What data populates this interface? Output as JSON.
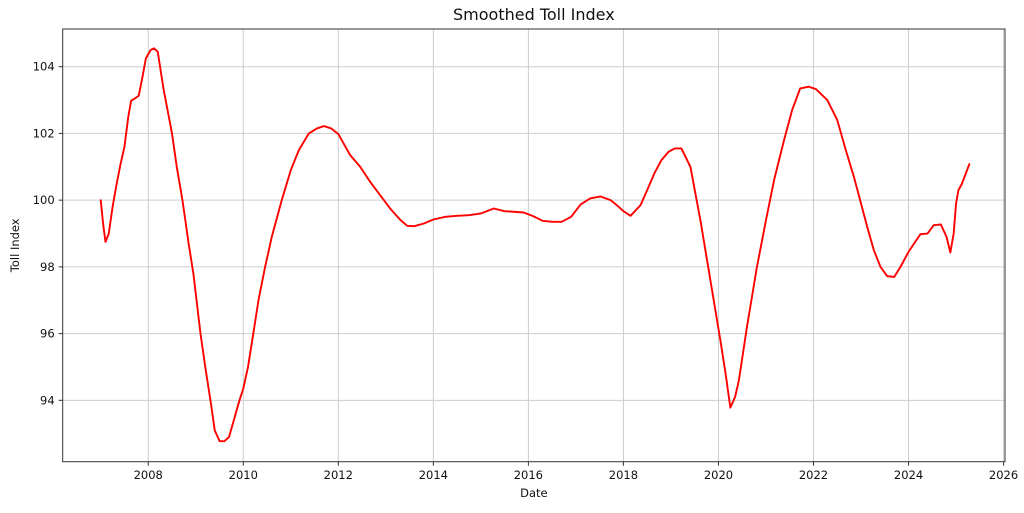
{
  "chart_data": {
    "type": "line",
    "title": "Smoothed Toll Index",
    "xlabel": "Date",
    "ylabel": "Toll Index",
    "xlim": [
      2006.2,
      2026.03
    ],
    "ylim": [
      92.16,
      105.13
    ],
    "xticks": [
      2008,
      2010,
      2012,
      2014,
      2016,
      2018,
      2020,
      2022,
      2024,
      2026
    ],
    "yticks": [
      94,
      96,
      98,
      100,
      102,
      104
    ],
    "grid": true,
    "grid_color": "#cdcdcd",
    "legend": "none",
    "series": [
      {
        "name": "Toll Index (smoothed)",
        "color": "#ff0000",
        "x": [
          2007.0,
          2007.05,
          2007.1,
          2007.17,
          2007.25,
          2007.33,
          2007.42,
          2007.5,
          2007.58,
          2007.64,
          2007.72,
          2007.8,
          2007.88,
          2007.95,
          2008.05,
          2008.12,
          2008.2,
          2008.32,
          2008.42,
          2008.5,
          2008.6,
          2008.72,
          2008.85,
          2008.95,
          2009.1,
          2009.2,
          2009.32,
          2009.4,
          2009.5,
          2009.6,
          2009.7,
          2009.8,
          2009.92,
          2010.0,
          2010.1,
          2010.2,
          2010.32,
          2010.46,
          2010.6,
          2010.81,
          2011.0,
          2011.17,
          2011.38,
          2011.55,
          2011.7,
          2011.85,
          2012.0,
          2012.25,
          2012.46,
          2012.67,
          2012.88,
          2013.09,
          2013.31,
          2013.45,
          2013.6,
          2013.8,
          2014.0,
          2014.25,
          2014.5,
          2014.75,
          2015.0,
          2015.27,
          2015.5,
          2015.9,
          2016.1,
          2016.3,
          2016.5,
          2016.7,
          2016.9,
          2017.1,
          2017.3,
          2017.52,
          2017.73,
          2017.9,
          2018.0,
          2018.15,
          2018.36,
          2018.5,
          2018.65,
          2018.8,
          2018.95,
          2019.08,
          2019.22,
          2019.41,
          2019.62,
          2019.76,
          2019.9,
          2020.04,
          2020.15,
          2020.25,
          2020.35,
          2020.43,
          2020.6,
          2020.81,
          2021.0,
          2021.17,
          2021.38,
          2021.55,
          2021.72,
          2021.9,
          2022.05,
          2022.29,
          2022.5,
          2022.68,
          2022.85,
          2023.0,
          2023.13,
          2023.27,
          2023.41,
          2023.55,
          2023.7,
          2023.83,
          2024.0,
          2024.14,
          2024.25,
          2024.4,
          2024.53,
          2024.68,
          2024.8,
          2024.88,
          2024.95,
          2025.0,
          2025.05,
          2025.12,
          2025.2,
          2025.28
        ],
        "y": [
          100.0,
          99.3,
          98.75,
          99.0,
          99.8,
          100.45,
          101.1,
          101.6,
          102.5,
          102.98,
          103.05,
          103.13,
          103.7,
          104.25,
          104.5,
          104.55,
          104.45,
          103.35,
          102.6,
          102.0,
          101.0,
          100.0,
          98.7,
          97.8,
          96.0,
          95.0,
          93.9,
          93.1,
          92.78,
          92.77,
          92.9,
          93.4,
          94.0,
          94.35,
          95.0,
          95.9,
          97.0,
          98.0,
          98.9,
          100.0,
          100.9,
          101.5,
          102.0,
          102.15,
          102.22,
          102.15,
          101.98,
          101.35,
          101.0,
          100.55,
          100.15,
          99.75,
          99.4,
          99.23,
          99.22,
          99.3,
          99.42,
          99.5,
          99.53,
          99.55,
          99.6,
          99.75,
          99.67,
          99.63,
          99.52,
          99.38,
          99.35,
          99.35,
          99.5,
          99.87,
          100.05,
          100.11,
          100.0,
          99.8,
          99.67,
          99.53,
          99.85,
          100.3,
          100.8,
          101.2,
          101.45,
          101.55,
          101.55,
          101.0,
          99.4,
          98.2,
          97.0,
          95.8,
          94.8,
          93.78,
          94.1,
          94.6,
          96.2,
          98.0,
          99.4,
          100.6,
          101.8,
          102.7,
          103.35,
          103.4,
          103.33,
          103.0,
          102.4,
          101.5,
          100.7,
          99.9,
          99.2,
          98.5,
          98.0,
          97.72,
          97.7,
          98.0,
          98.45,
          98.75,
          98.98,
          99.0,
          99.25,
          99.27,
          98.9,
          98.43,
          99.0,
          99.9,
          100.3,
          100.48,
          100.78,
          101.08
        ]
      }
    ]
  }
}
